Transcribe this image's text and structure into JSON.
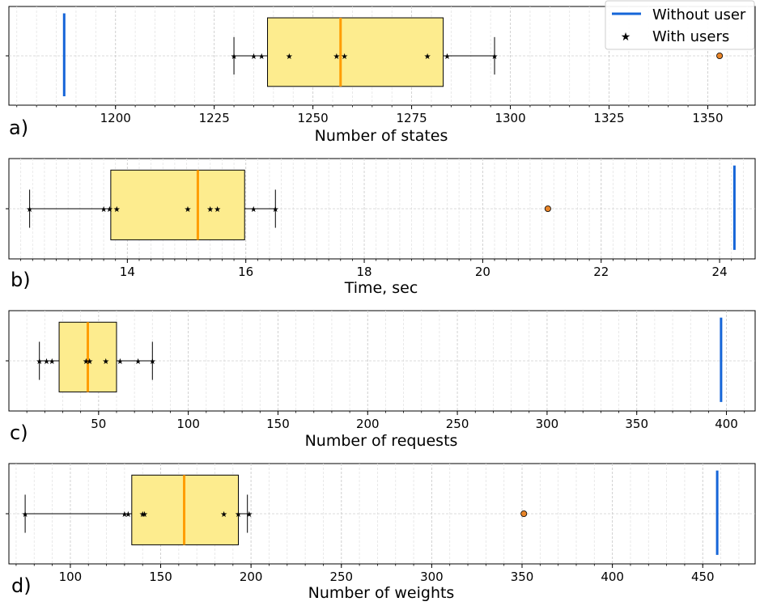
{
  "legend": {
    "without_label": "Without user",
    "with_label": "With users"
  },
  "colors": {
    "without_line": "#1565d8",
    "with_marker": "#ff8c1a",
    "box_fill": "#fdec8e",
    "median": "#ff9c00",
    "outlier_fill": "#e8852a"
  },
  "chart_data": [
    {
      "type": "boxplot",
      "panel": "a)",
      "xlabel": "Number of states",
      "xlim": [
        1173,
        1362
      ],
      "ticks": [
        1200,
        1225,
        1250,
        1275,
        1300,
        1325,
        1350
      ],
      "tick_labels": [
        "1200",
        "1225",
        "1250",
        "1275",
        "1300",
        "1325",
        "1350"
      ],
      "minor_step": 5,
      "box": {
        "whisker_low": 1230,
        "q1": 1238.5,
        "median": 1257,
        "q3": 1283,
        "whisker_high": 1296
      },
      "outliers": [
        1353
      ],
      "with_users": [
        1230,
        1235,
        1237,
        1244,
        1256,
        1258,
        1279,
        1284,
        1296
      ],
      "without_user": 1187
    },
    {
      "type": "boxplot",
      "panel": "b)",
      "xlabel": "Time, sec",
      "xlim": [
        12.0,
        24.6
      ],
      "ticks": [
        14,
        16,
        18,
        20,
        22,
        24
      ],
      "tick_labels": [
        "14",
        "16",
        "18",
        "20",
        "22",
        "24"
      ],
      "minor_step": 0.2,
      "box": {
        "whisker_low": 12.35,
        "q1": 13.72,
        "median": 15.19,
        "q3": 15.98,
        "whisker_high": 16.5
      },
      "outliers": [
        21.1
      ],
      "with_users": [
        12.35,
        13.6,
        13.7,
        13.82,
        15.02,
        15.4,
        15.52,
        16.13,
        16.5
      ],
      "without_user": 24.25
    },
    {
      "type": "boxplot",
      "panel": "c)",
      "xlabel": "Number of requests",
      "xlim": [
        0,
        416
      ],
      "ticks": [
        50,
        100,
        150,
        200,
        250,
        300,
        350,
        400
      ],
      "tick_labels": [
        "50",
        "100",
        "150",
        "200",
        "250",
        "300",
        "350",
        "400"
      ],
      "minor_step": 10,
      "box": {
        "whisker_low": 17,
        "q1": 28,
        "median": 44,
        "q3": 60,
        "whisker_high": 80
      },
      "outliers": [],
      "with_users": [
        17,
        21,
        24,
        43,
        45,
        54,
        62,
        72,
        80
      ],
      "without_user": 397
    },
    {
      "type": "boxplot",
      "panel": "d)",
      "xlabel": "Number of weights",
      "xlim": [
        66,
        479
      ],
      "ticks": [
        100,
        150,
        200,
        250,
        300,
        350,
        400,
        450
      ],
      "tick_labels": [
        "100",
        "150",
        "200",
        "250",
        "300",
        "350",
        "400",
        "450"
      ],
      "minor_step": 10,
      "box": {
        "whisker_low": 75,
        "q1": 134,
        "median": 163,
        "q3": 193,
        "whisker_high": 198
      },
      "outliers": [
        351
      ],
      "with_users": [
        75,
        130,
        132,
        140,
        141,
        185,
        193,
        199
      ],
      "without_user": 458
    }
  ]
}
